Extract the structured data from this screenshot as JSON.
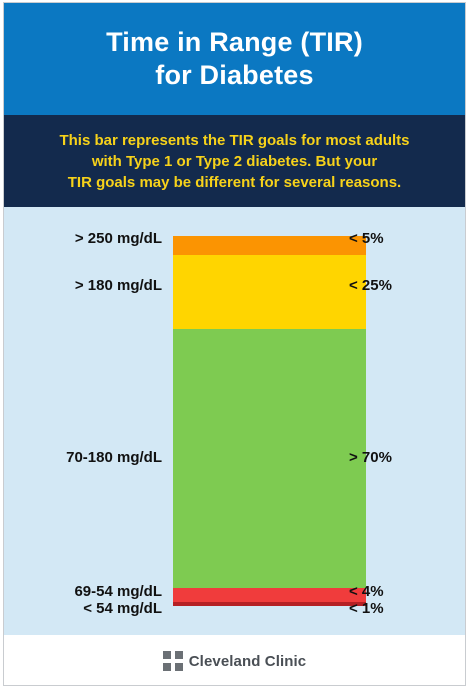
{
  "header": {
    "title_lines": [
      "Time in Range (TIR)",
      "for Diabetes"
    ]
  },
  "subhead": {
    "lines": [
      "This bar represents the TIR goals for most adults",
      "with Type 1 or Type 2 diabetes. But your",
      "TIR goals may be different for several reasons."
    ]
  },
  "colors": {
    "header_bg": "#0b78c2",
    "subhead_bg": "#132a4d",
    "subhead_text": "#f7d21a",
    "chart_bg": "#d3e8f5"
  },
  "chart_data": {
    "type": "bar",
    "orientation": "stacked-vertical",
    "segments": [
      {
        "range": "> 250 mg/dL",
        "goal": "< 5%",
        "value": 5,
        "color": "#fb9402"
      },
      {
        "range": "> 180 mg/dL",
        "goal": "< 25%",
        "value": 20,
        "color": "#ffd500"
      },
      {
        "range": "70-180 mg/dL",
        "goal": "> 70%",
        "value": 70,
        "color": "#7ecb51"
      },
      {
        "range": "69-54 mg/dL",
        "goal": "< 4%",
        "value": 4,
        "color": "#f03c3c"
      },
      {
        "range": "< 54 mg/dL",
        "goal": "< 1%",
        "value": 1,
        "color": "#b52024"
      }
    ]
  },
  "footer": {
    "brand": "Cleveland Clinic",
    "logo_icon": "cleveland-clinic-cross-icon"
  }
}
